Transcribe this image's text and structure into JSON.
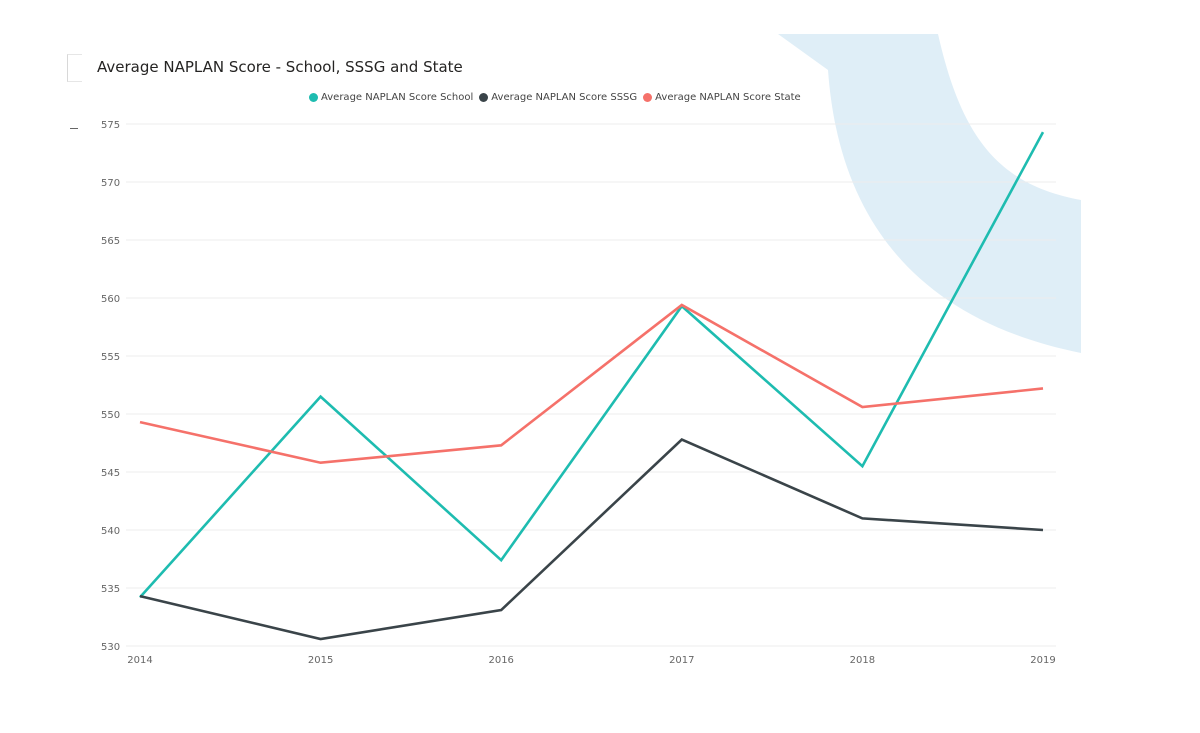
{
  "chart_data": {
    "type": "line",
    "title": "Average NAPLAN Score - School, SSSG and State",
    "xlabel": "",
    "ylabel": "",
    "categories": [
      "2014",
      "2015",
      "2016",
      "2017",
      "2018",
      "2019"
    ],
    "y_ticks": [
      "530",
      "535",
      "540",
      "545",
      "550",
      "555",
      "560",
      "565",
      "570",
      "575"
    ],
    "ylim": [
      530,
      575
    ],
    "grid": true,
    "legend_position": "top",
    "series": [
      {
        "name": "Average NAPLAN Score School",
        "color": "#1ebcb0",
        "values": [
          534.2,
          551.5,
          537.4,
          559.3,
          545.5,
          574.3
        ]
      },
      {
        "name": "Average NAPLAN Score SSSG",
        "color": "#3a4449",
        "values": [
          534.3,
          530.6,
          533.1,
          547.8,
          541.0,
          540.0
        ]
      },
      {
        "name": "Average NAPLAN Score State",
        "color": "#f5716a",
        "values": [
          549.3,
          545.8,
          547.3,
          559.4,
          550.6,
          552.2
        ]
      }
    ]
  },
  "colors": {
    "background_shape": "#dfeef7",
    "gridline": "#ececec",
    "tick_text": "#666666",
    "title_text": "#252423"
  }
}
